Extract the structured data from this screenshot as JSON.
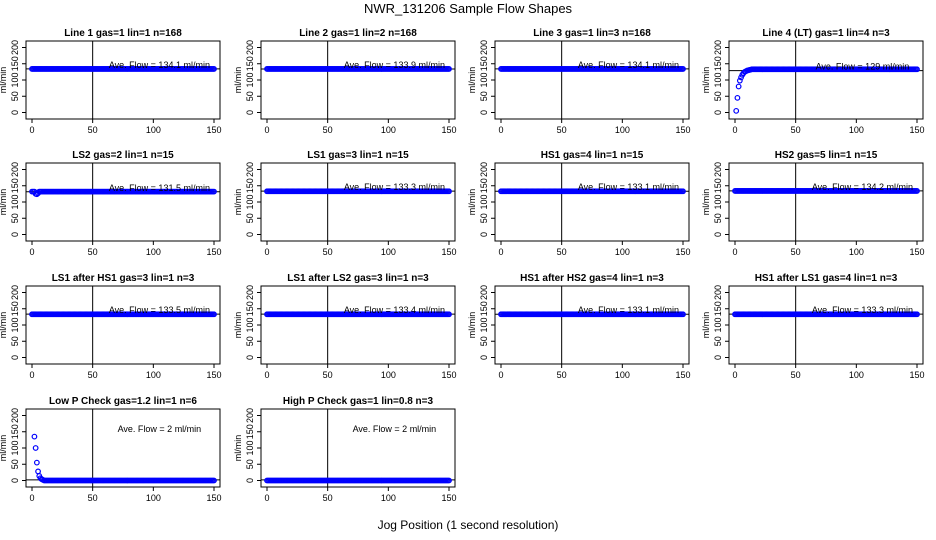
{
  "figure": {
    "title": "NWR_131206  Sample Flow Shapes",
    "xlabel": "Jog Position (1 second resolution)",
    "colors": {
      "points": "#0000ff",
      "axes": "#000000"
    }
  },
  "chart_data": [
    {
      "type": "scatter",
      "title": "Line 1 gas=1 lin=1 n=168",
      "ylabel": "ml/min",
      "xlim": [
        0,
        150
      ],
      "ylim": [
        -20,
        220
      ],
      "xticks": [
        0,
        50,
        100,
        150
      ],
      "yticks": [
        0,
        50,
        100,
        150,
        200
      ],
      "vline": 50,
      "hline": 134.1,
      "annotation": "Ave. Flow =  134.1  ml/min",
      "shape": "flat",
      "level": 134
    },
    {
      "type": "scatter",
      "title": "Line 2 gas=1 lin=2 n=168",
      "ylabel": "ml/min",
      "xlim": [
        0,
        150
      ],
      "ylim": [
        -20,
        220
      ],
      "xticks": [
        0,
        50,
        100,
        150
      ],
      "yticks": [
        0,
        50,
        100,
        150,
        200
      ],
      "vline": 50,
      "hline": 133.9,
      "annotation": "Ave. Flow =  133.9  ml/min",
      "shape": "flat",
      "level": 134
    },
    {
      "type": "scatter",
      "title": "Line 3 gas=1 lin=3 n=168",
      "ylabel": "ml/min",
      "xlim": [
        0,
        150
      ],
      "ylim": [
        -20,
        220
      ],
      "xticks": [
        0,
        50,
        100,
        150
      ],
      "yticks": [
        0,
        50,
        100,
        150,
        200
      ],
      "vline": 50,
      "hline": 134.1,
      "annotation": "Ave. Flow =  134.1  ml/min",
      "shape": "flat",
      "level": 134
    },
    {
      "type": "scatter",
      "title": "Line 4 (LT) gas=1 lin=4 n=3",
      "ylabel": "ml/min",
      "xlim": [
        0,
        150
      ],
      "ylim": [
        -20,
        220
      ],
      "xticks": [
        0,
        50,
        100,
        150
      ],
      "yticks": [
        0,
        50,
        100,
        150,
        200
      ],
      "vline": 50,
      "hline": 129,
      "annotation": "Ave. Flow =  129  ml/min",
      "shape": "rise",
      "level": 133,
      "points": [
        [
          1,
          5
        ],
        [
          2,
          45
        ],
        [
          3,
          80
        ],
        [
          4,
          98
        ],
        [
          5,
          108
        ],
        [
          6,
          116
        ],
        [
          7,
          121
        ],
        [
          8,
          125
        ],
        [
          9,
          127
        ],
        [
          10,
          129
        ],
        [
          11,
          130
        ],
        [
          12,
          131
        ],
        [
          13,
          132
        ]
      ]
    },
    {
      "type": "scatter",
      "title": "LS2 gas=2 lin=1 n=15",
      "ylabel": "ml/min",
      "xlim": [
        0,
        150
      ],
      "ylim": [
        -20,
        220
      ],
      "xticks": [
        0,
        50,
        100,
        150
      ],
      "yticks": [
        0,
        50,
        100,
        150,
        200
      ],
      "vline": 50,
      "hline": 131.5,
      "annotation": "Ave. Flow =  131.5  ml/min",
      "shape": "flat",
      "level": 132,
      "points": [
        [
          3,
          125
        ],
        [
          4,
          124
        ],
        [
          5,
          127
        ]
      ]
    },
    {
      "type": "scatter",
      "title": "LS1 gas=3 lin=1 n=15",
      "ylabel": "ml/min",
      "xlim": [
        0,
        150
      ],
      "ylim": [
        -20,
        220
      ],
      "xticks": [
        0,
        50,
        100,
        150
      ],
      "yticks": [
        0,
        50,
        100,
        150,
        200
      ],
      "vline": 50,
      "hline": 133.3,
      "annotation": "Ave. Flow =  133.3  ml/min",
      "shape": "flat",
      "level": 133
    },
    {
      "type": "scatter",
      "title": "HS1 gas=4 lin=1 n=15",
      "ylabel": "ml/min",
      "xlim": [
        0,
        150
      ],
      "ylim": [
        -20,
        220
      ],
      "xticks": [
        0,
        50,
        100,
        150
      ],
      "yticks": [
        0,
        50,
        100,
        150,
        200
      ],
      "vline": 50,
      "hline": 133.1,
      "annotation": "Ave. Flow =  133.1  ml/min",
      "shape": "flat",
      "level": 133
    },
    {
      "type": "scatter",
      "title": "HS2 gas=5 lin=1 n=15",
      "ylabel": "ml/min",
      "xlim": [
        0,
        150
      ],
      "ylim": [
        -20,
        220
      ],
      "xticks": [
        0,
        50,
        100,
        150
      ],
      "yticks": [
        0,
        50,
        100,
        150,
        200
      ],
      "vline": 50,
      "hline": 134.2,
      "annotation": "Ave. Flow =  134.2  ml/min",
      "shape": "flat",
      "level": 134
    },
    {
      "type": "scatter",
      "title": "LS1 after HS1 gas=3 lin=1 n=3",
      "ylabel": "ml/min",
      "xlim": [
        0,
        150
      ],
      "ylim": [
        -20,
        220
      ],
      "xticks": [
        0,
        50,
        100,
        150
      ],
      "yticks": [
        0,
        50,
        100,
        150,
        200
      ],
      "vline": 50,
      "hline": 133.5,
      "annotation": "Ave. Flow =  133.5  ml/min",
      "shape": "flat",
      "level": 133
    },
    {
      "type": "scatter",
      "title": "LS1 after LS2 gas=3 lin=1 n=3",
      "ylabel": "ml/min",
      "xlim": [
        0,
        150
      ],
      "ylim": [
        -20,
        220
      ],
      "xticks": [
        0,
        50,
        100,
        150
      ],
      "yticks": [
        0,
        50,
        100,
        150,
        200
      ],
      "vline": 50,
      "hline": 133.4,
      "annotation": "Ave. Flow =  133.4  ml/min",
      "shape": "flat",
      "level": 133
    },
    {
      "type": "scatter",
      "title": "HS1 after HS2 gas=4 lin=1 n=3",
      "ylabel": "ml/min",
      "xlim": [
        0,
        150
      ],
      "ylim": [
        -20,
        220
      ],
      "xticks": [
        0,
        50,
        100,
        150
      ],
      "yticks": [
        0,
        50,
        100,
        150,
        200
      ],
      "vline": 50,
      "hline": 133.1,
      "annotation": "Ave. Flow =  133.1  ml/min",
      "shape": "flat",
      "level": 133
    },
    {
      "type": "scatter",
      "title": "HS1 after LS1 gas=4 lin=1 n=3",
      "ylabel": "ml/min",
      "xlim": [
        0,
        150
      ],
      "ylim": [
        -20,
        220
      ],
      "xticks": [
        0,
        50,
        100,
        150
      ],
      "yticks": [
        0,
        50,
        100,
        150,
        200
      ],
      "vline": 50,
      "hline": 133.3,
      "annotation": "Ave. Flow =  133.3  ml/min",
      "shape": "flat",
      "level": 133
    },
    {
      "type": "scatter",
      "title": "Low P Check gas=1.2 lin=1 n=6",
      "ylabel": "ml/min",
      "xlim": [
        0,
        150
      ],
      "ylim": [
        -20,
        220
      ],
      "xticks": [
        0,
        50,
        100,
        150
      ],
      "yticks": [
        0,
        50,
        100,
        150,
        200
      ],
      "vline": 50,
      "hline": 2,
      "annotation": "Ave. Flow =  2  ml/min",
      "shape": "decay",
      "level": 0,
      "points": [
        [
          2,
          135
        ],
        [
          3,
          100
        ],
        [
          4,
          55
        ],
        [
          5,
          28
        ],
        [
          6,
          14
        ],
        [
          7,
          7
        ],
        [
          8,
          4
        ],
        [
          9,
          2
        ]
      ]
    },
    {
      "type": "scatter",
      "title": "High P Check gas=1 lin=0.8 n=3",
      "ylabel": "ml/min",
      "xlim": [
        0,
        150
      ],
      "ylim": [
        -20,
        220
      ],
      "xticks": [
        0,
        50,
        100,
        150
      ],
      "yticks": [
        0,
        50,
        100,
        150,
        200
      ],
      "vline": 50,
      "hline": 2,
      "annotation": "Ave. Flow =  2  ml/min",
      "shape": "flat",
      "level": 0
    }
  ]
}
